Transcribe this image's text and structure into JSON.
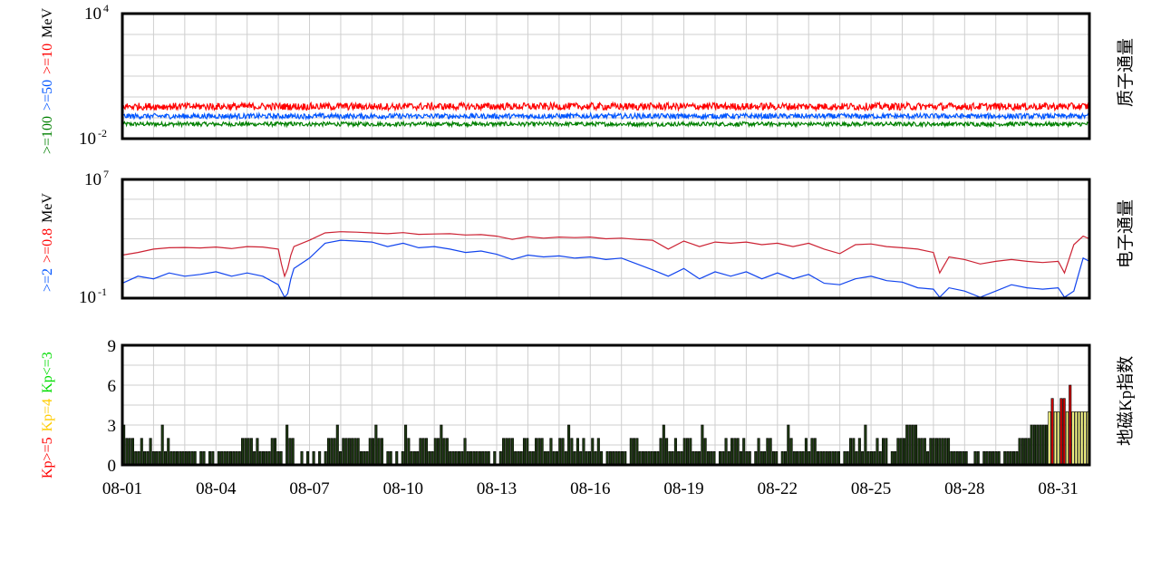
{
  "chart_data": [
    {
      "type": "line",
      "panel": "proton",
      "right_label": "质子通量",
      "y_scale": "log",
      "ylim": [
        0.01,
        10000
      ],
      "ytick_labels": [
        {
          "base": "10",
          "exp": "4"
        },
        {
          "base": "10",
          "exp": "-2"
        }
      ],
      "ylabel_parts": [
        {
          "text": ">=100",
          "color": "#008000"
        },
        {
          "text": ">=50",
          "color": "#0055ff"
        },
        {
          "text": ">=10",
          "color": "#ff0000"
        },
        {
          "text": "MeV",
          "color": "#000000"
        }
      ],
      "series": [
        {
          "name": ">=10",
          "color": "#ff0000",
          "approx_level": 0.35,
          "spread_decades": 0.35
        },
        {
          "name": ">=50",
          "color": "#0055ff",
          "approx_level": 0.12,
          "spread_decades": 0.25
        },
        {
          "name": ">=100",
          "color": "#008000",
          "approx_level": 0.05,
          "spread_decades": 0.2
        }
      ]
    },
    {
      "type": "line",
      "panel": "electron",
      "right_label": "电子通量",
      "y_scale": "log",
      "ylim": [
        0.1,
        10000000
      ],
      "ytick_labels": [
        {
          "base": "10",
          "exp": "7"
        },
        {
          "base": "10",
          "exp": "-1"
        }
      ],
      "ylabel_parts": [
        {
          "text": ">=2",
          "color": "#0055ff"
        },
        {
          "text": ">=0.8",
          "color": "#ff0000"
        },
        {
          "text": "MeV",
          "color": "#000000"
        }
      ],
      "x_days": [
        0,
        0.5,
        1,
        1.5,
        2,
        2.5,
        3,
        3.5,
        4,
        4.5,
        5,
        5.1,
        5.2,
        5.3,
        5.4,
        5.5,
        6,
        6.5,
        7,
        7.5,
        8,
        8.5,
        9,
        9.5,
        10,
        10.5,
        11,
        11.5,
        12,
        12.5,
        13,
        13.5,
        14,
        14.5,
        15,
        15.5,
        16,
        16.5,
        17,
        17.5,
        18,
        18.5,
        19,
        19.5,
        20,
        20.5,
        21,
        21.5,
        22,
        22.5,
        23,
        23.5,
        24,
        24.5,
        25,
        25.5,
        26,
        26.2,
        26.5,
        27,
        27.5,
        28,
        28.5,
        29,
        29.5,
        30,
        30.2,
        30.5,
        30.8,
        31
      ],
      "series": [
        {
          "name": ">=0.8",
          "color": "#cc2233",
          "values": [
            80,
            120,
            200,
            250,
            260,
            240,
            280,
            220,
            300,
            280,
            200,
            20,
            3,
            10,
            80,
            300,
            800,
            2500,
            3000,
            2800,
            2500,
            2200,
            2600,
            2000,
            2100,
            2200,
            1800,
            1900,
            1500,
            900,
            1400,
            1100,
            1300,
            1200,
            1300,
            1000,
            1100,
            900,
            800,
            200,
            700,
            300,
            600,
            500,
            600,
            400,
            500,
            300,
            500,
            200,
            100,
            400,
            450,
            300,
            250,
            200,
            120,
            5,
            60,
            40,
            20,
            30,
            40,
            30,
            25,
            30,
            5,
            400,
            1500,
            1000
          ]
        },
        {
          "name": ">=2",
          "color": "#1144ee",
          "values": [
            1,
            3,
            2,
            5,
            3,
            4,
            6,
            3,
            5,
            3,
            0.8,
            0.3,
            0.1,
            0.2,
            2,
            10,
            50,
            500,
            800,
            700,
            600,
            300,
            500,
            250,
            300,
            200,
            120,
            150,
            90,
            40,
            80,
            60,
            70,
            50,
            60,
            40,
            50,
            20,
            8,
            3,
            10,
            2,
            6,
            3,
            6,
            2,
            5,
            2,
            4,
            1,
            0.8,
            2,
            3,
            1.5,
            1.2,
            0.5,
            0.4,
            0.1,
            0.5,
            0.3,
            0.1,
            0.3,
            0.8,
            0.5,
            0.4,
            0.5,
            0.1,
            0.3,
            50,
            30
          ]
        }
      ]
    },
    {
      "type": "bar",
      "panel": "kp",
      "right_label": "地磁Kp指数",
      "ylim": [
        0,
        9
      ],
      "yticks": [
        "0",
        "3",
        "6",
        "9"
      ],
      "ylabel_parts": [
        {
          "text": "Kp>=5",
          "color": "#ff0000"
        },
        {
          "text": "Kp=4",
          "color": "#ffcc00"
        },
        {
          "text": "Kp<=3",
          "color": "#00dd00"
        }
      ],
      "colors": {
        "low": "#1e3a12",
        "mid": "#ffff88",
        "high": "#cc0000"
      },
      "bin_hours": 3,
      "values": [
        3,
        2,
        2,
        2,
        1,
        1,
        2,
        1,
        1,
        2,
        1,
        1,
        1,
        3,
        1,
        2,
        1,
        1,
        1,
        1,
        1,
        1,
        1,
        1,
        1,
        0,
        1,
        1,
        0,
        1,
        1,
        0,
        1,
        1,
        1,
        1,
        1,
        1,
        1,
        1,
        2,
        2,
        2,
        2,
        1,
        2,
        1,
        1,
        1,
        1,
        2,
        2,
        1,
        1,
        0,
        3,
        2,
        2,
        0,
        0,
        1,
        0,
        1,
        0,
        1,
        0,
        1,
        0,
        1,
        2,
        2,
        2,
        3,
        1,
        2,
        2,
        2,
        2,
        2,
        2,
        1,
        1,
        1,
        2,
        2,
        3,
        2,
        2,
        0,
        1,
        1,
        0,
        1,
        0,
        1,
        3,
        2,
        1,
        1,
        1,
        2,
        2,
        2,
        1,
        1,
        2,
        2,
        3,
        2,
        2,
        1,
        1,
        1,
        1,
        1,
        2,
        1,
        1,
        1,
        1,
        1,
        1,
        1,
        1,
        0,
        1,
        0,
        1,
        2,
        2,
        2,
        2,
        1,
        1,
        1,
        2,
        2,
        1,
        1,
        2,
        2,
        2,
        1,
        1,
        2,
        1,
        1,
        2,
        2,
        1,
        3,
        2,
        1,
        2,
        1,
        2,
        1,
        1,
        2,
        1,
        2,
        1,
        0,
        1,
        1,
        1,
        1,
        1,
        1,
        1,
        0,
        2,
        2,
        2,
        1,
        1,
        1,
        1,
        1,
        1,
        1,
        2,
        3,
        2,
        1,
        1,
        2,
        1,
        1,
        2,
        2,
        2,
        1,
        1,
        1,
        3,
        2,
        1,
        1,
        1,
        0,
        1,
        1,
        2,
        1,
        2,
        2,
        2,
        1,
        2,
        1,
        1,
        0,
        1,
        2,
        1,
        1,
        2,
        2,
        1,
        1,
        0,
        1,
        1,
        3,
        2,
        1,
        1,
        1,
        1,
        2,
        1,
        2,
        2,
        1,
        1,
        1,
        1,
        1,
        1,
        1,
        1,
        0,
        1,
        1,
        2,
        2,
        1,
        2,
        1,
        3,
        1,
        1,
        1,
        2,
        1,
        2,
        2,
        0,
        1,
        1,
        2,
        2,
        2,
        3,
        3,
        3,
        3,
        2,
        2,
        2,
        1,
        2,
        2,
        2,
        2,
        2,
        2,
        2,
        1,
        1,
        1,
        1,
        1,
        1,
        0,
        0,
        1,
        1,
        0,
        1,
        1,
        1,
        1,
        1,
        1,
        0,
        1,
        1,
        1,
        1,
        1,
        2,
        2,
        2,
        2,
        3,
        3,
        3,
        3,
        3,
        3,
        4,
        5,
        4,
        4,
        5,
        5,
        4,
        6,
        4,
        4,
        4,
        4,
        4,
        4
      ]
    }
  ],
  "x_axis": {
    "start_day": "08-01",
    "span_days": 31,
    "tick_labels": [
      "08-01",
      "08-04",
      "08-07",
      "08-10",
      "08-13",
      "08-16",
      "08-19",
      "08-22",
      "08-25",
      "08-28",
      "08-31"
    ],
    "tick_step_days": 3
  }
}
